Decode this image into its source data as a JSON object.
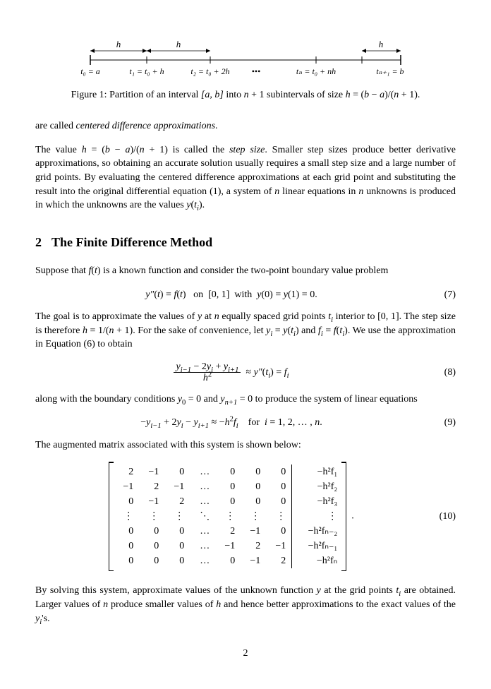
{
  "figure": {
    "diagram": {
      "tick_labels": [
        "t₀ = a",
        "t₁ = t₀ + h",
        "t₂ = t₀ + 2h",
        "•••",
        "tₙ = t₀ + nh",
        "tₙ₊₁ = b"
      ],
      "arc_label": "h",
      "line_color": "#000000"
    },
    "caption_prefix": "Figure 1: Partition of an interval ",
    "caption_interval": "[a, b]",
    "caption_mid": " into ",
    "caption_n1": "n + 1",
    "caption_mid2": " subintervals of size ",
    "caption_h": "h = (b − a)/(n + 1)",
    "caption_end": "."
  },
  "para1_a": "are called ",
  "para1_b": "centered difference approximations",
  "para1_c": ".",
  "para2": "The value h = (b − a)/(n + 1) is called the step size. Smaller step sizes produce better derivative approximations, so obtaining an accurate solution usually requires a small step size and a large number of grid points. By evaluating the centered difference approximations at each grid point and substituting the result into the original differential equation (1), a system of n linear equations in n unknowns is produced in which the unknowns are the values y(tᵢ).",
  "section": {
    "number": "2",
    "title": "The Finite Difference Method"
  },
  "para3": "Suppose that f(t) is a known function and consider the two-point boundary value problem",
  "eq7": {
    "text": "y″(t) = f(t)   on  [0, 1]  with  y(0) = y(1) = 0.",
    "num": "(7)"
  },
  "para4": "The goal is to approximate the values of y at n equally spaced grid points tᵢ interior to [0, 1]. The step size is therefore h = 1/(n + 1). For the sake of convenience, let yᵢ = y(tᵢ) and fᵢ = f(tᵢ). We use the approximation in Equation (6) to obtain",
  "eq8": {
    "num": "(8)",
    "numtext": "yᵢ₋₁ − 2yᵢ + yᵢ₊₁",
    "dentext": "h²",
    "rhs": " ≈ y″(tᵢ) = fᵢ"
  },
  "para5": "along with the boundary conditions y₀ = 0 and yₙ₊₁ = 0 to produce the system of linear equations",
  "eq9": {
    "text": "−yᵢ₋₁ + 2yᵢ − yᵢ₊₁ ≈ −h²fᵢ    for  i = 1, 2, … , n.",
    "num": "(9)"
  },
  "para6": "The augmented matrix associated with this system is shown below:",
  "matrix": {
    "rows": [
      [
        "2",
        "−1",
        "0",
        "…",
        "0",
        "0",
        "0"
      ],
      [
        "−1",
        "2",
        "−1",
        "…",
        "0",
        "0",
        "0"
      ],
      [
        "0",
        "−1",
        "2",
        "…",
        "0",
        "0",
        "0"
      ],
      [
        "⋮",
        "⋮",
        "⋮",
        "⋱",
        "⋮",
        "⋮",
        "⋮"
      ],
      [
        "0",
        "0",
        "0",
        "…",
        "2",
        "−1",
        "0"
      ],
      [
        "0",
        "0",
        "0",
        "…",
        "−1",
        "2",
        "−1"
      ],
      [
        "0",
        "0",
        "0",
        "…",
        "0",
        "−1",
        "2"
      ]
    ],
    "rhs": [
      "−h²f₁",
      "−h²f₂",
      "−h²f₃",
      "⋮",
      "−h²fₙ₋₂",
      "−h²fₙ₋₁",
      "−h²fₙ"
    ],
    "trail": ".",
    "num": "(10)"
  },
  "para7": "By solving this system, approximate values of the unknown function y at the grid points tᵢ are obtained. Larger values of n produce smaller values of h and hence better approximations to the exact values of the yᵢ's.",
  "page_number": "2",
  "style": {
    "background_color": "#ffffff",
    "text_color": "#000000",
    "body_fontsize": 14,
    "heading_fontsize": 18,
    "font_family": "Times New Roman"
  }
}
